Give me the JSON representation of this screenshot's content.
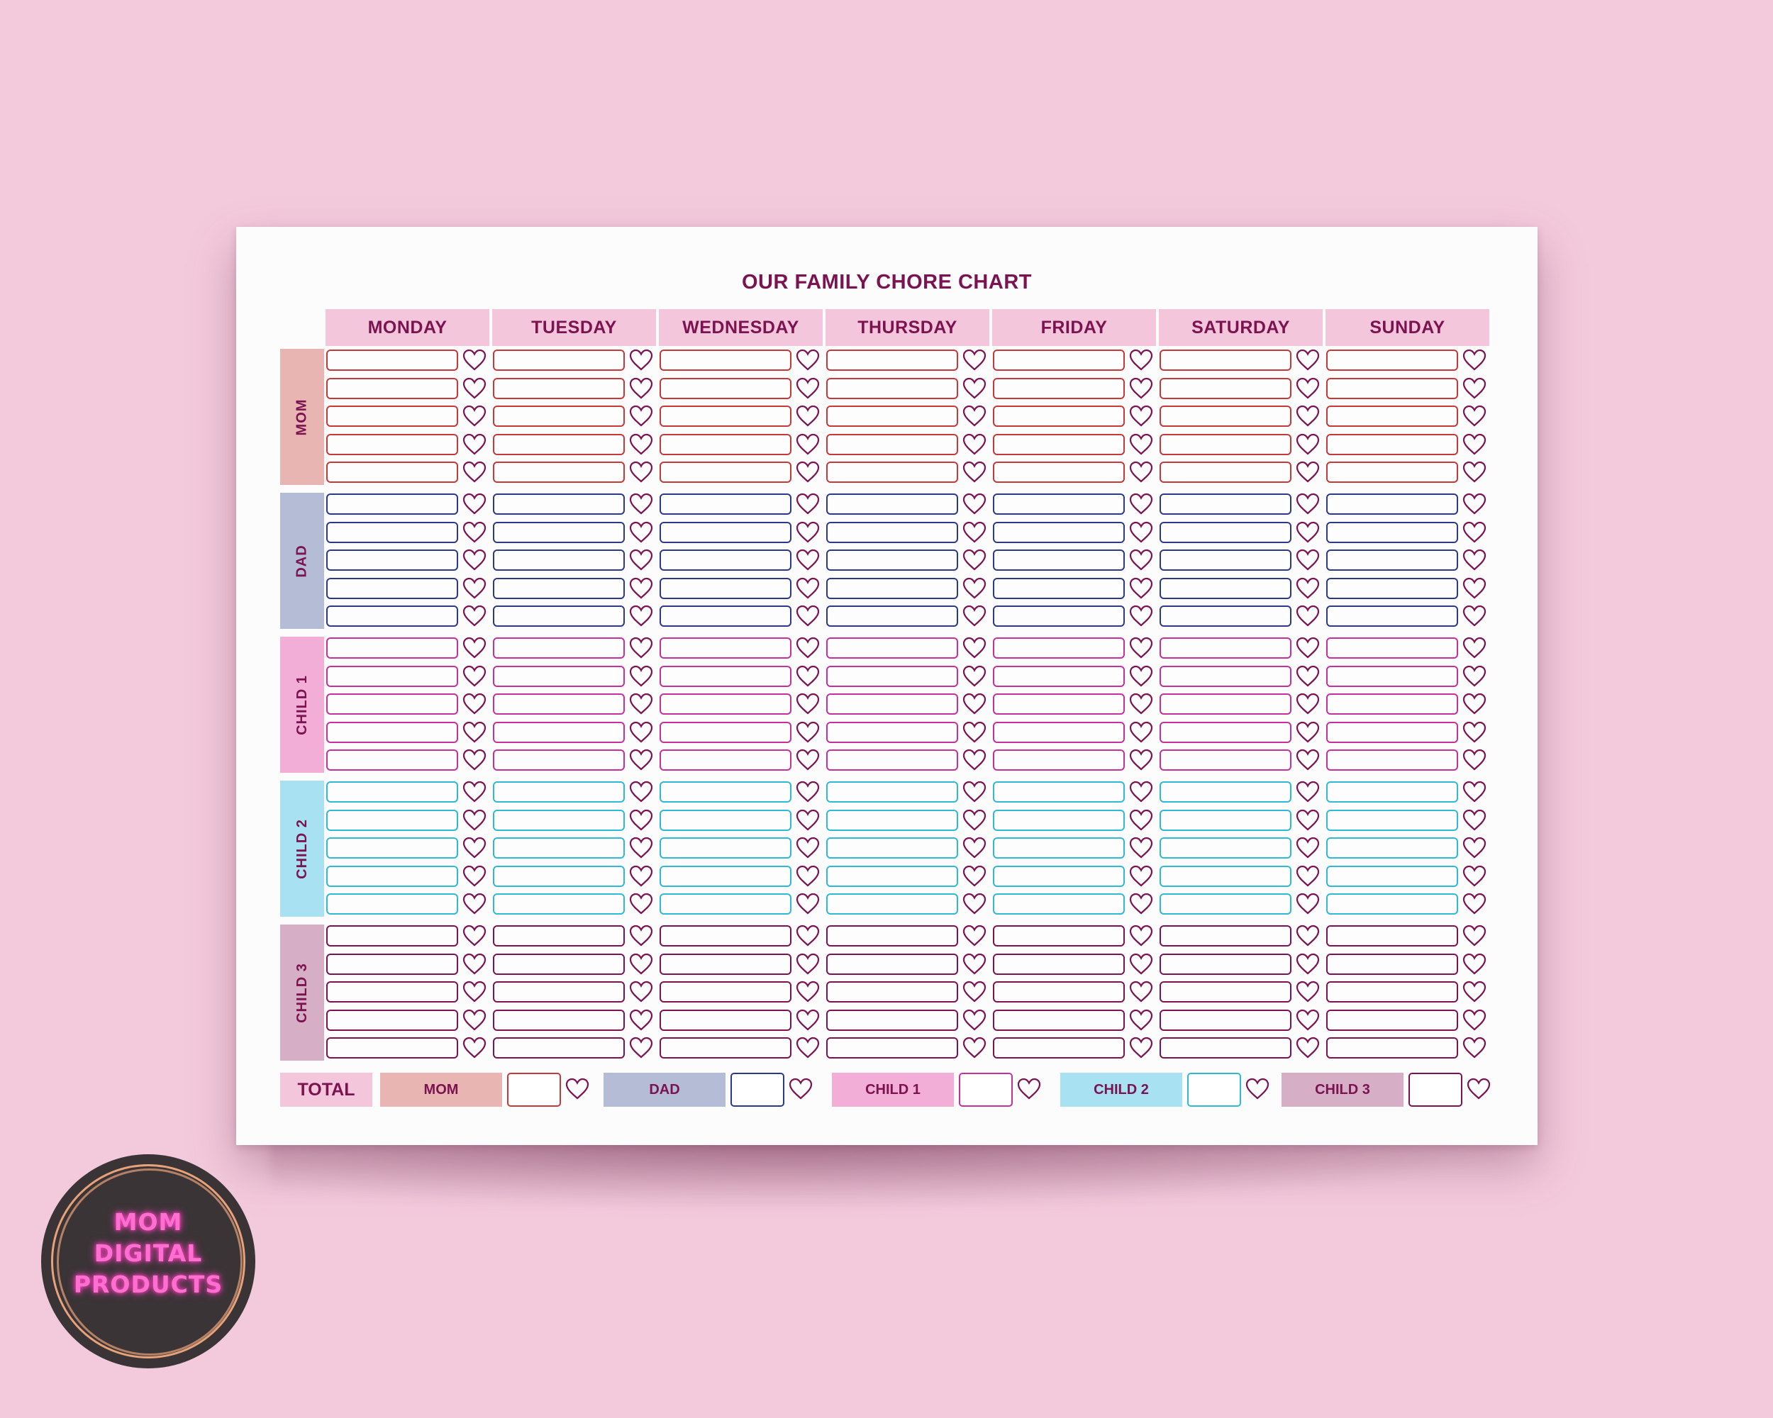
{
  "title": "OUR FAMILY CHORE CHART",
  "days": [
    "MONDAY",
    "TUESDAY",
    "WEDNESDAY",
    "THURSDAY",
    "FRIDAY",
    "SATURDAY",
    "SUNDAY"
  ],
  "rows_per_person": 5,
  "people": [
    {
      "label": "MOM",
      "bg": "#e8b5b3",
      "border": "#c4393a"
    },
    {
      "label": "DAD",
      "bg": "#b5bcd6",
      "border": "#2c3a86"
    },
    {
      "label": "CHILD 1",
      "bg": "#f2aed6",
      "border": "#c4319b"
    },
    {
      "label": "CHILD 2",
      "bg": "#a8e1f2",
      "border": "#2fb9d3"
    },
    {
      "label": "CHILD 3",
      "bg": "#d6afc6",
      "border": "#7a1350"
    }
  ],
  "total": {
    "label": "TOTAL",
    "items": [
      {
        "label": "MOM",
        "bg": "#e8b5b3",
        "border": "#c4393a"
      },
      {
        "label": "DAD",
        "bg": "#b5bcd6",
        "border": "#2c3a86"
      },
      {
        "label": "CHILD 1",
        "bg": "#f2aed6",
        "border": "#c4319b"
      },
      {
        "label": "CHILD 2",
        "bg": "#a8e1f2",
        "border": "#2fb9d3"
      },
      {
        "label": "CHILD 3",
        "bg": "#d6afc6",
        "border": "#7a1350"
      }
    ]
  },
  "badge": {
    "lines": [
      "MOM",
      "DIGITAL",
      "PRODUCTS"
    ]
  },
  "colors": {
    "accent": "#7a1350",
    "header_bg": "#f4c6dc",
    "background": "#f3cadc"
  }
}
